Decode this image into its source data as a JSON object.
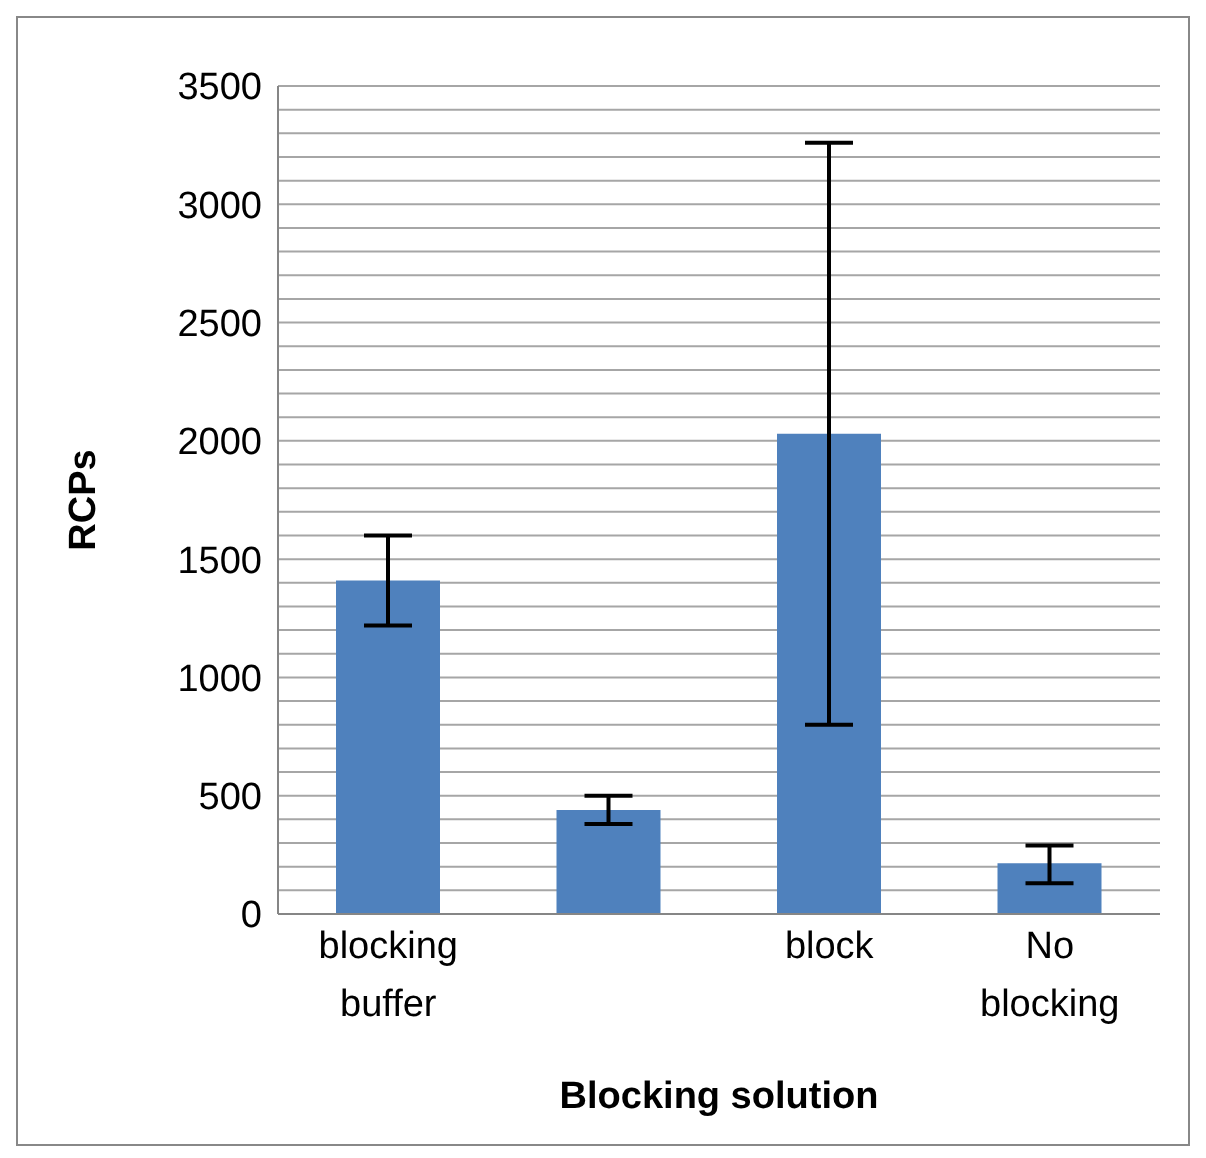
{
  "chart_data": {
    "type": "bar",
    "xlabel": "Blocking solution",
    "ylabel": "RCPs",
    "categories": [
      "blocking buffer",
      null,
      "block",
      "No blocking"
    ],
    "values": [
      1410,
      440,
      2030,
      215
    ],
    "color": "#4f81bd",
    "errors": [
      [
        1220,
        1600
      ],
      [
        380,
        500
      ],
      [
        800,
        3260
      ],
      [
        130,
        290
      ]
    ],
    "ylim": [
      0,
      3500
    ],
    "yticks": [
      0,
      {
        "value": 100,
        "label": null
      },
      {
        "value": 200,
        "label": null
      },
      {
        "value": 300,
        "label": null
      },
      {
        "value": 400,
        "label": null
      },
      500,
      {
        "value": 600,
        "label": null
      },
      {
        "value": 700,
        "label": null
      },
      {
        "value": 800,
        "label": null
      },
      {
        "value": 900,
        "label": null
      },
      1000,
      {
        "value": 1100,
        "label": null
      },
      {
        "value": 1200,
        "label": null
      },
      {
        "value": 1300,
        "label": null
      },
      {
        "value": 1400,
        "label": null
      },
      1500,
      {
        "value": 1600,
        "label": null
      },
      {
        "value": 1700,
        "label": null
      },
      {
        "value": 1800,
        "label": null
      },
      {
        "value": 1900,
        "label": null
      },
      2000,
      {
        "value": 2100,
        "label": null
      },
      {
        "value": 2200,
        "label": null
      },
      {
        "value": 2300,
        "label": null
      },
      {
        "value": 2400,
        "label": null
      },
      2500,
      {
        "value": 2600,
        "label": null
      },
      {
        "value": 2700,
        "label": null
      },
      {
        "value": 2800,
        "label": null
      },
      {
        "value": 2900,
        "label": null
      },
      3000,
      {
        "value": 3100,
        "label": null
      },
      {
        "value": 3200,
        "label": null
      },
      {
        "value": 3300,
        "label": null
      },
      {
        "value": 3400,
        "label": null
      },
      3500
    ],
    "grid": "y",
    "legend": false
  }
}
